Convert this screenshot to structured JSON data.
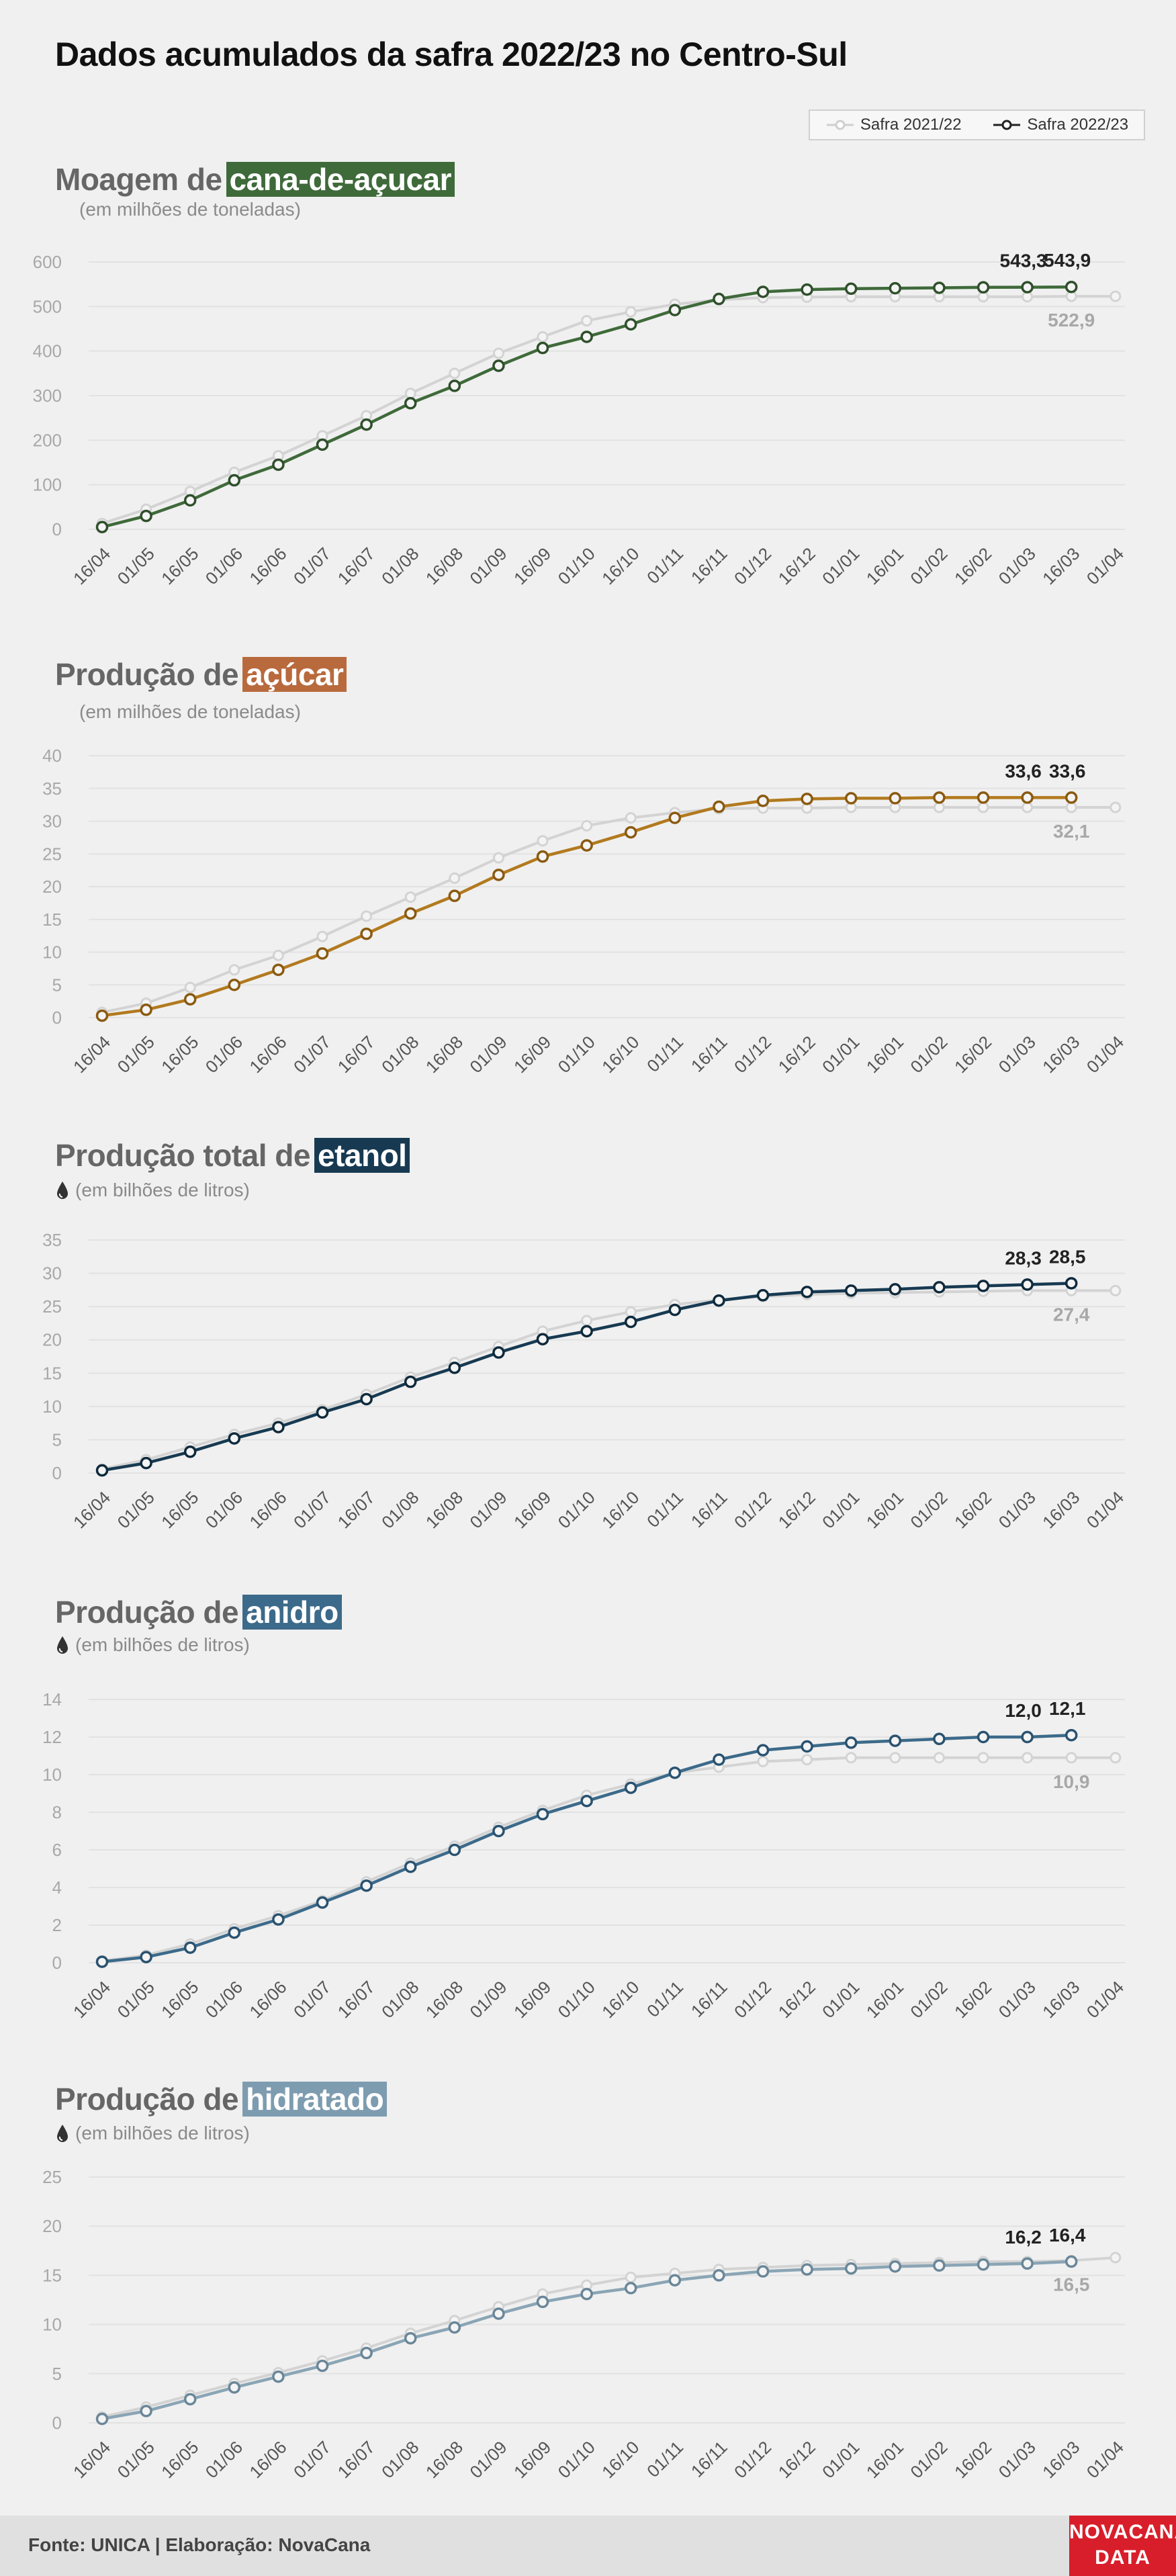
{
  "page": {
    "title": "Dados acumulados da safra 2022/23 no Centro-Sul",
    "footer": "Fonte: UNICA | Elaboração: NovaCana",
    "logo_line1": "NOVACANA",
    "logo_line2": "DATA"
  },
  "legend": {
    "items": [
      {
        "label": "Safra 2021/22",
        "color": "#cfcfcf"
      },
      {
        "label": "Safra 2022/23",
        "color": "#222222"
      }
    ]
  },
  "x_labels": [
    "16/04",
    "01/05",
    "16/05",
    "01/06",
    "16/06",
    "01/07",
    "16/07",
    "01/08",
    "16/08",
    "01/09",
    "16/09",
    "01/10",
    "16/10",
    "01/11",
    "16/11",
    "01/12",
    "16/12",
    "01/01",
    "16/01",
    "01/02",
    "16/02",
    "01/03",
    "16/03",
    "01/04"
  ],
  "panels": [
    {
      "title_prefix": "Moagem de",
      "title_highlight": "cana-de-açucar",
      "highlight_color": "#3f6a3a",
      "subtitle": "(em milhões de toneladas)",
      "drop_icon": false
    },
    {
      "title_prefix": "Produção de",
      "title_highlight": "açúcar",
      "highlight_color": "#b86a3d",
      "subtitle": "(em milhões de toneladas)",
      "drop_icon": false
    },
    {
      "title_prefix": "Produção total de",
      "title_highlight": "etanol",
      "highlight_color": "#173a52",
      "subtitle": "(em bilhões de litros)",
      "drop_icon": true
    },
    {
      "title_prefix": "Produção de",
      "title_highlight": "anidro",
      "highlight_color": "#3c6a8a",
      "subtitle": "(em bilhões de litros)",
      "drop_icon": true
    },
    {
      "title_prefix": "Produção de",
      "title_highlight": "hidratado",
      "highlight_color": "#7d9cb0",
      "subtitle": "(em bilhões de litros)",
      "drop_icon": true
    }
  ],
  "chart_data": [
    {
      "type": "line",
      "title": "Moagem de cana-de-açucar",
      "ylabel": "(em milhões de toneladas)",
      "ylim": [
        0,
        600
      ],
      "yticks": [
        0,
        100,
        200,
        300,
        400,
        500,
        600
      ],
      "x": [
        "16/04",
        "01/05",
        "16/05",
        "01/06",
        "16/06",
        "01/07",
        "16/07",
        "01/08",
        "16/08",
        "01/09",
        "16/09",
        "01/10",
        "16/10",
        "01/11",
        "16/11",
        "01/12",
        "16/12",
        "01/01",
        "16/01",
        "01/02",
        "16/02",
        "01/03",
        "16/03",
        "01/04"
      ],
      "grid": true,
      "series": [
        {
          "name": "Safra 2021/22",
          "color": "#d3d3d3",
          "values": [
            13,
            45,
            85,
            128,
            165,
            210,
            255,
            305,
            350,
            395,
            432,
            468,
            488,
            505,
            515,
            520,
            521,
            522,
            522,
            522,
            522,
            522,
            523,
            522.9
          ],
          "labels": [
            {
              "index": 22,
              "text": "522,9"
            }
          ]
        },
        {
          "name": "Safra 2022/23",
          "color": "#3f6a3a",
          "values": [
            5,
            30,
            65,
            110,
            145,
            190,
            235,
            283,
            322,
            367,
            407,
            432,
            460,
            492,
            517,
            533,
            538,
            540,
            541,
            542,
            543,
            543.3,
            543.9,
            null
          ],
          "labels": [
            {
              "index": 21,
              "text": "543,3"
            },
            {
              "index": 22,
              "text": "543,9"
            }
          ]
        }
      ]
    },
    {
      "type": "line",
      "title": "Produção de açúcar",
      "ylabel": "(em milhões de toneladas)",
      "ylim": [
        0,
        40
      ],
      "yticks": [
        0,
        5,
        10,
        15,
        20,
        25,
        30,
        35,
        40
      ],
      "x": [
        "16/04",
        "01/05",
        "16/05",
        "01/06",
        "16/06",
        "01/07",
        "16/07",
        "01/08",
        "16/08",
        "01/09",
        "16/09",
        "01/10",
        "16/10",
        "01/11",
        "16/11",
        "01/12",
        "16/12",
        "01/01",
        "16/01",
        "01/02",
        "16/02",
        "01/03",
        "16/03",
        "01/04"
      ],
      "grid": true,
      "series": [
        {
          "name": "Safra 2021/22",
          "color": "#d3d3d3",
          "values": [
            0.8,
            2.2,
            4.6,
            7.3,
            9.5,
            12.4,
            15.5,
            18.4,
            21.3,
            24.4,
            27.0,
            29.3,
            30.5,
            31.3,
            31.9,
            32.0,
            32.0,
            32.1,
            32.1,
            32.1,
            32.1,
            32.1,
            32.1,
            32.1
          ],
          "labels": [
            {
              "index": 22,
              "text": "32,1"
            }
          ]
        },
        {
          "name": "Safra 2022/23",
          "color": "#b27a1f",
          "values": [
            0.3,
            1.2,
            2.8,
            5.0,
            7.3,
            9.8,
            12.8,
            15.9,
            18.6,
            21.8,
            24.6,
            26.3,
            28.3,
            30.5,
            32.2,
            33.1,
            33.4,
            33.5,
            33.5,
            33.6,
            33.6,
            33.6,
            33.6,
            null
          ],
          "labels": [
            {
              "index": 21,
              "text": "33,6"
            },
            {
              "index": 22,
              "text": "33,6"
            }
          ]
        }
      ]
    },
    {
      "type": "line",
      "title": "Produção total de etanol",
      "ylabel": "(em bilhões de litros)",
      "ylim": [
        0,
        35
      ],
      "yticks": [
        0,
        5,
        10,
        15,
        20,
        25,
        30,
        35
      ],
      "x": [
        "16/04",
        "01/05",
        "16/05",
        "01/06",
        "16/06",
        "01/07",
        "16/07",
        "01/08",
        "16/08",
        "01/09",
        "16/09",
        "01/10",
        "16/10",
        "01/11",
        "16/11",
        "01/12",
        "16/12",
        "01/01",
        "16/01",
        "01/02",
        "16/02",
        "01/03",
        "16/03",
        "01/04"
      ],
      "grid": true,
      "series": [
        {
          "name": "Safra 2021/22",
          "color": "#d3d3d3",
          "values": [
            0.6,
            2.0,
            3.9,
            5.8,
            7.5,
            9.5,
            11.8,
            14.4,
            16.6,
            19.0,
            21.3,
            22.9,
            24.2,
            25.3,
            26.0,
            26.5,
            26.8,
            27.0,
            27.1,
            27.2,
            27.3,
            27.4,
            27.4,
            27.4
          ],
          "labels": [
            {
              "index": 22,
              "text": "27,4"
            }
          ]
        },
        {
          "name": "Safra 2022/23",
          "color": "#173a52",
          "values": [
            0.4,
            1.5,
            3.2,
            5.2,
            6.9,
            9.1,
            11.1,
            13.7,
            15.8,
            18.1,
            20.1,
            21.3,
            22.7,
            24.5,
            25.9,
            26.7,
            27.2,
            27.4,
            27.6,
            27.9,
            28.1,
            28.3,
            28.5,
            null
          ],
          "labels": [
            {
              "index": 21,
              "text": "28,3"
            },
            {
              "index": 22,
              "text": "28,5"
            }
          ]
        }
      ]
    },
    {
      "type": "line",
      "title": "Produção de anidro",
      "ylabel": "(em bilhões de litros)",
      "ylim": [
        0,
        14
      ],
      "yticks": [
        0,
        2,
        4,
        6,
        8,
        10,
        12,
        14
      ],
      "x": [
        "16/04",
        "01/05",
        "16/05",
        "01/06",
        "16/06",
        "01/07",
        "16/07",
        "01/08",
        "16/08",
        "01/09",
        "16/09",
        "01/10",
        "16/10",
        "01/11",
        "16/11",
        "01/12",
        "16/12",
        "01/01",
        "16/01",
        "01/02",
        "16/02",
        "01/03",
        "16/03",
        "01/04"
      ],
      "grid": true,
      "series": [
        {
          "name": "Safra 2021/22",
          "color": "#d3d3d3",
          "values": [
            0.1,
            0.4,
            1.0,
            1.8,
            2.5,
            3.3,
            4.3,
            5.3,
            6.2,
            7.2,
            8.1,
            8.9,
            9.5,
            10.1,
            10.4,
            10.7,
            10.8,
            10.9,
            10.9,
            10.9,
            10.9,
            10.9,
            10.9,
            10.9
          ],
          "labels": [
            {
              "index": 22,
              "text": "10,9"
            }
          ]
        },
        {
          "name": "Safra 2022/23",
          "color": "#3c6a8a",
          "values": [
            0.05,
            0.3,
            0.8,
            1.6,
            2.3,
            3.2,
            4.1,
            5.1,
            6.0,
            7.0,
            7.9,
            8.6,
            9.3,
            10.1,
            10.8,
            11.3,
            11.5,
            11.7,
            11.8,
            11.9,
            12.0,
            12.0,
            12.1,
            null
          ],
          "labels": [
            {
              "index": 21,
              "text": "12,0"
            },
            {
              "index": 22,
              "text": "12,1"
            }
          ]
        }
      ]
    },
    {
      "type": "line",
      "title": "Produção de hidratado",
      "ylabel": "(em bilhões de litros)",
      "ylim": [
        0,
        25
      ],
      "yticks": [
        0,
        5,
        10,
        15,
        20,
        25
      ],
      "x": [
        "16/04",
        "01/05",
        "16/05",
        "01/06",
        "16/06",
        "01/07",
        "16/07",
        "01/08",
        "16/08",
        "01/09",
        "16/09",
        "01/10",
        "16/10",
        "01/11",
        "16/11",
        "01/12",
        "16/12",
        "01/01",
        "16/01",
        "01/02",
        "16/02",
        "01/03",
        "16/03",
        "01/04"
      ],
      "grid": true,
      "series": [
        {
          "name": "Safra 2021/22",
          "color": "#d3d3d3",
          "values": [
            0.6,
            1.6,
            2.8,
            4.0,
            5.1,
            6.3,
            7.6,
            9.1,
            10.4,
            11.8,
            13.1,
            14.0,
            14.8,
            15.2,
            15.6,
            15.8,
            16.0,
            16.1,
            16.2,
            16.3,
            16.4,
            16.4,
            16.5,
            16.8
          ],
          "labels": [
            {
              "index": 22,
              "text": "16,5"
            }
          ]
        },
        {
          "name": "Safra 2022/23",
          "color": "#8aa5b5",
          "values": [
            0.4,
            1.2,
            2.4,
            3.6,
            4.7,
            5.8,
            7.1,
            8.6,
            9.7,
            11.1,
            12.3,
            13.1,
            13.7,
            14.5,
            15.0,
            15.4,
            15.6,
            15.7,
            15.9,
            16.0,
            16.1,
            16.2,
            16.4,
            null
          ],
          "labels": [
            {
              "index": 21,
              "text": "16,2"
            },
            {
              "index": 22,
              "text": "16,4"
            }
          ]
        }
      ]
    }
  ]
}
